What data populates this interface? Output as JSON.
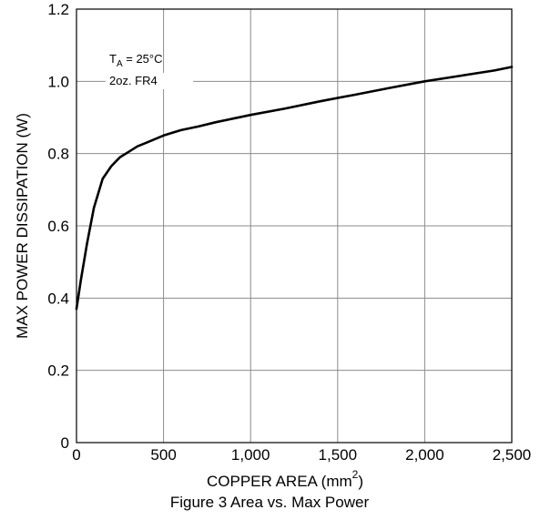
{
  "chart_data": {
    "type": "line",
    "title": "",
    "caption": "Figure 3 Area vs. Max Power",
    "xlabel": "COPPER AREA (mm",
    "xlabel_superscript": "2",
    "xlabel_suffix": ")",
    "ylabel": "MAX POWER DISSIPATION (W)",
    "xlim": [
      0,
      2500
    ],
    "ylim": [
      0,
      1.2
    ],
    "xticks": [
      0,
      500,
      1000,
      1500,
      2000,
      2500
    ],
    "xtick_labels": [
      "0",
      "500",
      "1,000",
      "1,500",
      "2,000",
      "2,500"
    ],
    "yticks": [
      0,
      0.2,
      0.4,
      0.6,
      0.8,
      1.0,
      1.2
    ],
    "ytick_labels": [
      "0",
      "0.2",
      "0.4",
      "0.6",
      "0.8",
      "1.0",
      "1.2"
    ],
    "grid": true,
    "annotation": {
      "temp_symbol": "T",
      "temp_subscript": "A",
      "temp_value": " = 25°C",
      "board": "2oz. FR4"
    },
    "series": [
      {
        "x": [
          0,
          25,
          60,
          100,
          150,
          200,
          250,
          300,
          350,
          400,
          500,
          600,
          700,
          800,
          900,
          1000,
          1200,
          1400,
          1600,
          1800,
          2000,
          2200,
          2400,
          2500
        ],
        "y": [
          0.37,
          0.45,
          0.55,
          0.65,
          0.73,
          0.765,
          0.79,
          0.805,
          0.82,
          0.83,
          0.85,
          0.865,
          0.875,
          0.887,
          0.897,
          0.907,
          0.925,
          0.945,
          0.963,
          0.982,
          1.0,
          1.015,
          1.03,
          1.04
        ]
      }
    ]
  }
}
